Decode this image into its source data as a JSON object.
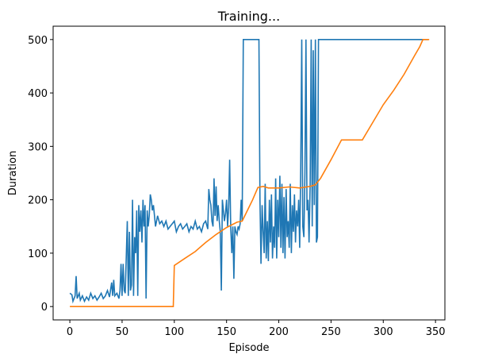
{
  "chart_data": {
    "type": "line",
    "title": "Training...",
    "x_label": "Episode",
    "y_label": "Duration",
    "xlim": [
      -16,
      359
    ],
    "ylim": [
      -25,
      525
    ],
    "xticks": [
      0,
      50,
      100,
      150,
      200,
      250,
      300,
      350
    ],
    "yticks": [
      0,
      100,
      200,
      300,
      400,
      500
    ],
    "series": [
      {
        "color": "#1f77b4",
        "x": [
          0,
          2,
          3,
          5,
          6,
          7,
          9,
          10,
          12,
          14,
          16,
          18,
          20,
          22,
          24,
          26,
          28,
          30,
          32,
          34,
          36,
          38,
          40,
          41,
          42,
          43,
          45,
          47,
          48,
          49,
          50,
          51,
          52,
          53,
          55,
          56,
          57,
          58,
          59,
          60,
          61,
          62,
          63,
          64,
          65,
          66,
          67,
          68,
          69,
          70,
          71,
          72,
          73,
          74,
          75,
          76,
          77,
          78,
          79,
          80,
          82,
          84,
          86,
          88,
          90,
          92,
          94,
          96,
          98,
          100,
          102,
          104,
          106,
          108,
          110,
          112,
          114,
          116,
          118,
          120,
          122,
          124,
          126,
          128,
          130,
          132,
          133,
          134,
          135,
          136,
          137,
          138,
          139,
          140,
          141,
          142,
          143,
          144,
          145,
          146,
          147,
          148,
          149,
          150,
          151,
          152,
          153,
          154,
          155,
          156,
          157,
          158,
          159,
          160,
          161,
          162,
          163,
          164,
          165,
          166,
          175,
          181,
          182,
          183,
          184,
          185,
          186,
          187,
          188,
          189,
          190,
          191,
          192,
          193,
          194,
          195,
          196,
          197,
          198,
          199,
          200,
          201,
          202,
          203,
          204,
          205,
          206,
          207,
          208,
          209,
          210,
          211,
          212,
          213,
          214,
          215,
          216,
          217,
          218,
          219,
          220,
          221,
          222,
          223,
          224,
          225,
          226,
          227,
          228,
          229,
          230,
          231,
          232,
          233,
          234,
          235,
          236,
          237,
          238,
          343
        ],
        "values": [
          25,
          22,
          10,
          20,
          57,
          15,
          25,
          12,
          20,
          10,
          18,
          12,
          25,
          15,
          20,
          12,
          18,
          25,
          15,
          20,
          30,
          18,
          45,
          20,
          50,
          20,
          25,
          15,
          30,
          80,
          20,
          80,
          30,
          25,
          160,
          20,
          140,
          30,
          40,
          200,
          20,
          130,
          100,
          180,
          20,
          190,
          140,
          180,
          120,
          200,
          150,
          190,
          15,
          180,
          150,
          170,
          210,
          200,
          180,
          190,
          150,
          170,
          155,
          160,
          150,
          160,
          145,
          150,
          155,
          160,
          140,
          150,
          155,
          145,
          150,
          155,
          140,
          150,
          145,
          160,
          145,
          150,
          140,
          155,
          160,
          145,
          220,
          200,
          190,
          160,
          150,
          240,
          170,
          225,
          160,
          190,
          160,
          140,
          30,
          200,
          180,
          160,
          175,
          200,
          150,
          185,
          275,
          150,
          100,
          150,
          52,
          150,
          140,
          135,
          150,
          145,
          155,
          200,
          160,
          500,
          500,
          500,
          200,
          80,
          190,
          140,
          100,
          230,
          90,
          160,
          85,
          200,
          120,
          210,
          90,
          150,
          110,
          240,
          90,
          200,
          130,
          245,
          110,
          230,
          100,
          205,
          90,
          220,
          130,
          160,
          110,
          230,
          100,
          190,
          140,
          210,
          120,
          180,
          150,
          200,
          110,
          260,
          500,
          150,
          130,
          250,
          500,
          180,
          200,
          120,
          230,
          500,
          150,
          480,
          190,
          500,
          120,
          130,
          500,
          500
        ]
      },
      {
        "color": "#ff7f0e",
        "x": [
          0,
          99,
          100,
          110,
          120,
          130,
          140,
          150,
          160,
          165,
          175,
          180,
          185,
          190,
          200,
          210,
          220,
          230,
          235,
          240,
          250,
          260,
          280,
          290,
          300,
          310,
          320,
          330,
          335,
          338,
          344
        ],
        "values": [
          0,
          0,
          77,
          90,
          103,
          120,
          135,
          148,
          158,
          160,
          200,
          223,
          225,
          222,
          222,
          224,
          222,
          225,
          228,
          240,
          275,
          312,
          312,
          345,
          378,
          405,
          435,
          470,
          487,
          500,
          500
        ]
      }
    ]
  }
}
